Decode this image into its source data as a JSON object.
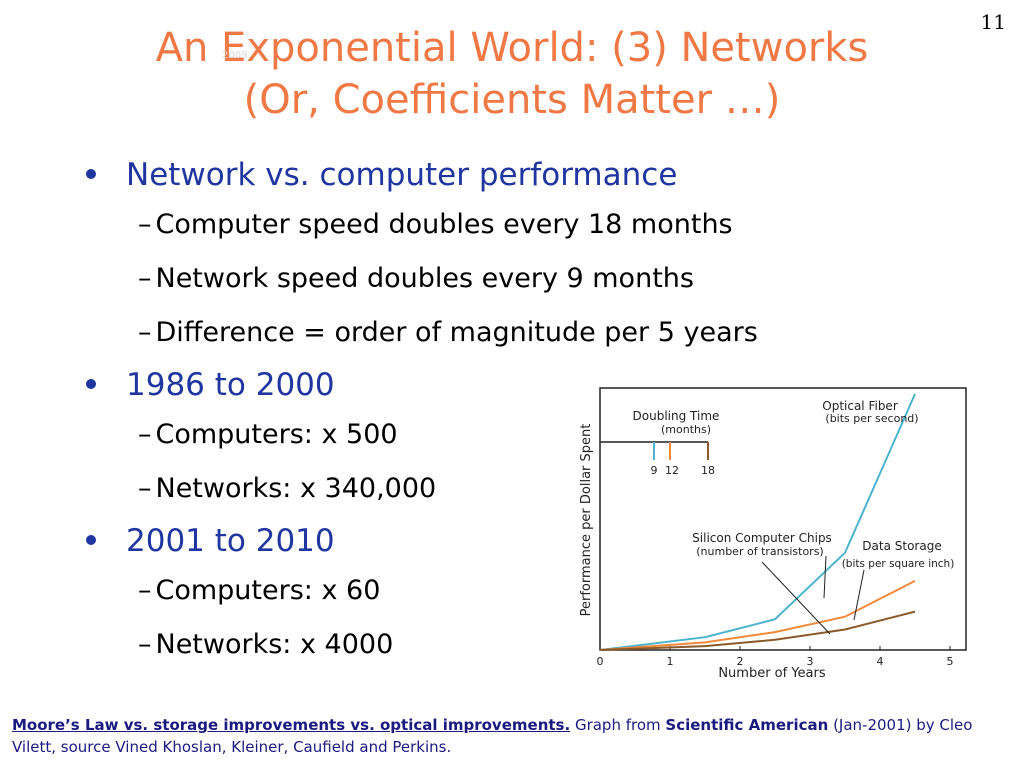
{
  "slide_number": "11",
  "title_line1": "An Exponential World: (3) Networks",
  "title_line2": "(Or, Coefficients Matter …)",
  "watermark": "2009",
  "bullets": [
    {
      "text": "Network vs. computer performance",
      "subs": [
        "Computer speed doubles every 18 months",
        "Network speed doubles every 9 months",
        "Difference = order of magnitude per 5 years"
      ]
    },
    {
      "text": "1986 to 2000",
      "subs": [
        "Computers: x 500",
        "Networks: x 340,000"
      ]
    },
    {
      "text": "2001 to 2010",
      "subs": [
        "Computers: x 60",
        "Networks: x 4000"
      ]
    }
  ],
  "chart_data": {
    "type": "line",
    "xlabel": "Number of Years",
    "ylabel": "Performance per Dollar Spent",
    "xlim": [
      0,
      5
    ],
    "x_ticks": [
      "0",
      "1",
      "2",
      "3",
      "4",
      "5"
    ],
    "grid": false,
    "doubling_time_label": "Doubling Time",
    "doubling_time_unit": "(months)",
    "doubling_ticks": [
      "9",
      "12",
      "18"
    ],
    "series": [
      {
        "name": "Optical Fiber",
        "sublabel": "(bits per second)",
        "color": "#4cb3cf",
        "x": [
          0,
          1.5,
          2.5,
          3.5,
          4.5
        ],
        "y": [
          0,
          0.05,
          0.12,
          0.38,
          1.0
        ]
      },
      {
        "name": "Data Storage",
        "sublabel": "(bits per square inch)",
        "color": "#f28a3c",
        "x": [
          0,
          1.5,
          2.5,
          3.5,
          4.5
        ],
        "y": [
          0,
          0.03,
          0.07,
          0.13,
          0.27
        ]
      },
      {
        "name": "Silicon Computer Chips",
        "sublabel": "(number of transistors)",
        "color": "#8a5a2b",
        "x": [
          0,
          1.5,
          2.5,
          3.5,
          4.5
        ],
        "y": [
          0,
          0.015,
          0.04,
          0.08,
          0.15
        ]
      }
    ]
  },
  "footer": {
    "link": "Moore’s Law vs. storage improvements vs. optical improvements.",
    "t1": " Graph from ",
    "bold1": "Scientific American",
    "t2": " (Jan-2001) by Cleo Vilett, source Vined Khoslan, Kleiner, Caufield and Perkins."
  }
}
